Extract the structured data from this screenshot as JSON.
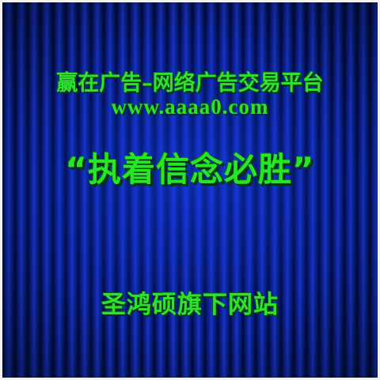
{
  "banner": {
    "line1": "赢在广告–网络广告交易平台",
    "line2": "www.aaaa0.com",
    "slogan": "“执着信念必胜”",
    "footer": "圣鸿硕旗下网站"
  },
  "colors": {
    "text_green": "#2fe02f",
    "curtain_blue": "#1638c8",
    "border": "#f2f2f2"
  }
}
